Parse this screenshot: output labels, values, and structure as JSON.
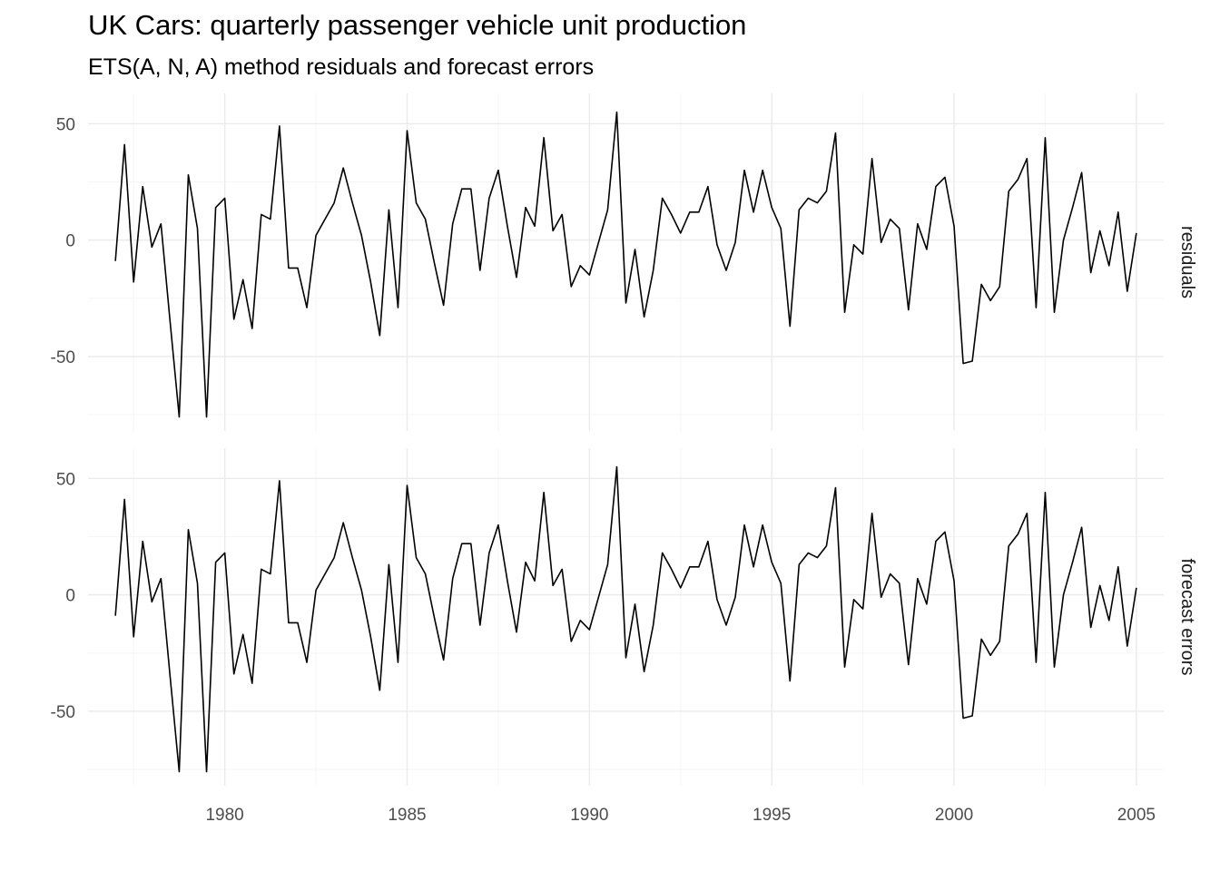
{
  "chart_data": {
    "type": "line",
    "title": "UK Cars: quarterly passenger vehicle unit production",
    "subtitle": "ETS(A, N, A) method residuals and forecast errors",
    "xlabel": "",
    "ylabel": "",
    "x_start": 1977.0,
    "x_step": 0.25,
    "xlim": [
      1976.25,
      2005.75
    ],
    "x_ticks": [
      1980,
      1985,
      1990,
      1995,
      2000,
      2005
    ],
    "ylim": [
      -82,
      63
    ],
    "y_ticks": [
      -50,
      0,
      50
    ],
    "grid": true,
    "panels": [
      {
        "label": "residuals",
        "values": [
          -9,
          41,
          -18,
          23,
          -3,
          7,
          -35,
          -76,
          28,
          5,
          -76,
          14,
          18,
          -34,
          -17,
          -38,
          11,
          9,
          49,
          -12,
          -12,
          -29,
          2,
          9,
          16,
          31,
          16,
          2,
          -18,
          -41,
          13,
          -29,
          47,
          16,
          9,
          -10,
          -28,
          7,
          22,
          22,
          -13,
          18,
          30,
          6,
          -16,
          14,
          6,
          44,
          4,
          11,
          -20,
          -11,
          -15,
          -1,
          13,
          55,
          -27,
          -4,
          -33,
          -13,
          18,
          11,
          3,
          12,
          12,
          23,
          -2,
          -13,
          -1,
          30,
          12,
          30,
          14,
          5,
          -37,
          13,
          18,
          16,
          21,
          46,
          -31,
          -2,
          -6,
          35,
          -1,
          9,
          5,
          -30,
          7,
          -4,
          23,
          27,
          6,
          -53,
          -52,
          -19,
          -26,
          -20,
          21,
          26,
          35,
          -29,
          44,
          -31,
          0,
          14,
          29,
          -14,
          4,
          -11,
          12,
          -22,
          3
        ]
      },
      {
        "label": "forecast errors",
        "values": [
          -9,
          41,
          -18,
          23,
          -3,
          7,
          -35,
          -76,
          28,
          5,
          -76,
          14,
          18,
          -34,
          -17,
          -38,
          11,
          9,
          49,
          -12,
          -12,
          -29,
          2,
          9,
          16,
          31,
          16,
          2,
          -18,
          -41,
          13,
          -29,
          47,
          16,
          9,
          -10,
          -28,
          7,
          22,
          22,
          -13,
          18,
          30,
          6,
          -16,
          14,
          6,
          44,
          4,
          11,
          -20,
          -11,
          -15,
          -1,
          13,
          55,
          -27,
          -4,
          -33,
          -13,
          18,
          11,
          3,
          12,
          12,
          23,
          -2,
          -13,
          -1,
          30,
          12,
          30,
          14,
          5,
          -37,
          13,
          18,
          16,
          21,
          46,
          -31,
          -2,
          -6,
          35,
          -1,
          9,
          5,
          -30,
          7,
          -4,
          23,
          27,
          6,
          -53,
          -52,
          -19,
          -26,
          -20,
          21,
          26,
          35,
          -29,
          44,
          -31,
          0,
          14,
          29,
          -14,
          4,
          -11,
          12,
          -22,
          3
        ]
      }
    ],
    "colors": {
      "line": "#000000",
      "grid_major": "#ebebeb",
      "grid_minor": "#f5f5f5",
      "tick_text": "#4d4d4d"
    }
  }
}
